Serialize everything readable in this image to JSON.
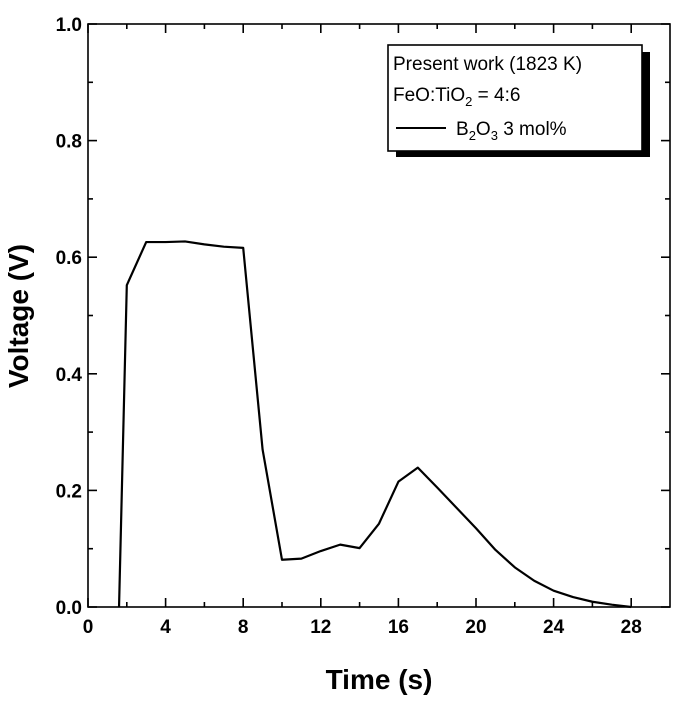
{
  "chart_data": {
    "type": "line",
    "title": "",
    "xlabel": "Time (s)",
    "ylabel": "Voltage (V)",
    "xlim": [
      0,
      30
    ],
    "ylim": [
      0.0,
      1.0
    ],
    "xticks": [
      0,
      4,
      8,
      12,
      16,
      20,
      24,
      28
    ],
    "xtick_labels": [
      "0",
      "4",
      "8",
      "12",
      "16",
      "20",
      "24",
      "28"
    ],
    "yticks": [
      0.0,
      0.2,
      0.4,
      0.6,
      0.8,
      1.0
    ],
    "ytick_labels": [
      "0.0",
      "0.2",
      "0.4",
      "0.6",
      "0.8",
      "1.0"
    ],
    "legend": {
      "placement": "top-right",
      "title_lines": [
        "Present work (1823 K)",
        "FeO:TiO",
        "2",
        " = 4:6"
      ],
      "entry": {
        "main": "B",
        "sub1": "2",
        "mid": "O",
        "sub2": "3",
        "tail": " 3 mol%"
      }
    },
    "series": [
      {
        "name": "B2O3 3 mol%",
        "color": "#000000",
        "x": [
          1.6,
          2,
          3,
          4,
          5,
          6,
          7,
          8,
          9,
          10,
          11,
          12,
          13,
          14,
          15,
          16,
          17,
          18,
          19,
          20,
          21,
          22,
          23,
          24,
          25,
          26,
          27,
          28
        ],
        "y": [
          0.0,
          0.552,
          0.626,
          0.626,
          0.627,
          0.622,
          0.618,
          0.616,
          0.27,
          0.081,
          0.083,
          0.096,
          0.107,
          0.101,
          0.143,
          0.215,
          0.239,
          0.205,
          0.17,
          0.135,
          0.098,
          0.068,
          0.045,
          0.028,
          0.017,
          0.009,
          0.004,
          0.0
        ]
      }
    ]
  }
}
